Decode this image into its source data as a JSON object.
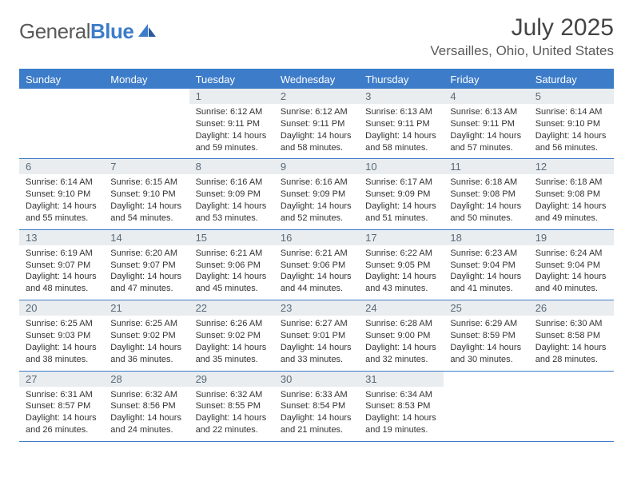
{
  "brand": {
    "part1": "General",
    "part2": "Blue"
  },
  "title": "July 2025",
  "location": "Versailles, Ohio, United States",
  "colors": {
    "accent": "#3d7cc9",
    "daynum_bg": "#e9edf0",
    "text": "#333333",
    "muted": "#5a5a5a"
  },
  "weekdays": [
    "Sunday",
    "Monday",
    "Tuesday",
    "Wednesday",
    "Thursday",
    "Friday",
    "Saturday"
  ],
  "layout": {
    "first_weekday_index": 2,
    "days_in_month": 31
  },
  "days": {
    "1": {
      "sunrise": "6:12 AM",
      "sunset": "9:11 PM",
      "daylight": "14 hours and 59 minutes."
    },
    "2": {
      "sunrise": "6:12 AM",
      "sunset": "9:11 PM",
      "daylight": "14 hours and 58 minutes."
    },
    "3": {
      "sunrise": "6:13 AM",
      "sunset": "9:11 PM",
      "daylight": "14 hours and 58 minutes."
    },
    "4": {
      "sunrise": "6:13 AM",
      "sunset": "9:11 PM",
      "daylight": "14 hours and 57 minutes."
    },
    "5": {
      "sunrise": "6:14 AM",
      "sunset": "9:10 PM",
      "daylight": "14 hours and 56 minutes."
    },
    "6": {
      "sunrise": "6:14 AM",
      "sunset": "9:10 PM",
      "daylight": "14 hours and 55 minutes."
    },
    "7": {
      "sunrise": "6:15 AM",
      "sunset": "9:10 PM",
      "daylight": "14 hours and 54 minutes."
    },
    "8": {
      "sunrise": "6:16 AM",
      "sunset": "9:09 PM",
      "daylight": "14 hours and 53 minutes."
    },
    "9": {
      "sunrise": "6:16 AM",
      "sunset": "9:09 PM",
      "daylight": "14 hours and 52 minutes."
    },
    "10": {
      "sunrise": "6:17 AM",
      "sunset": "9:09 PM",
      "daylight": "14 hours and 51 minutes."
    },
    "11": {
      "sunrise": "6:18 AM",
      "sunset": "9:08 PM",
      "daylight": "14 hours and 50 minutes."
    },
    "12": {
      "sunrise": "6:18 AM",
      "sunset": "9:08 PM",
      "daylight": "14 hours and 49 minutes."
    },
    "13": {
      "sunrise": "6:19 AM",
      "sunset": "9:07 PM",
      "daylight": "14 hours and 48 minutes."
    },
    "14": {
      "sunrise": "6:20 AM",
      "sunset": "9:07 PM",
      "daylight": "14 hours and 47 minutes."
    },
    "15": {
      "sunrise": "6:21 AM",
      "sunset": "9:06 PM",
      "daylight": "14 hours and 45 minutes."
    },
    "16": {
      "sunrise": "6:21 AM",
      "sunset": "9:06 PM",
      "daylight": "14 hours and 44 minutes."
    },
    "17": {
      "sunrise": "6:22 AM",
      "sunset": "9:05 PM",
      "daylight": "14 hours and 43 minutes."
    },
    "18": {
      "sunrise": "6:23 AM",
      "sunset": "9:04 PM",
      "daylight": "14 hours and 41 minutes."
    },
    "19": {
      "sunrise": "6:24 AM",
      "sunset": "9:04 PM",
      "daylight": "14 hours and 40 minutes."
    },
    "20": {
      "sunrise": "6:25 AM",
      "sunset": "9:03 PM",
      "daylight": "14 hours and 38 minutes."
    },
    "21": {
      "sunrise": "6:25 AM",
      "sunset": "9:02 PM",
      "daylight": "14 hours and 36 minutes."
    },
    "22": {
      "sunrise": "6:26 AM",
      "sunset": "9:02 PM",
      "daylight": "14 hours and 35 minutes."
    },
    "23": {
      "sunrise": "6:27 AM",
      "sunset": "9:01 PM",
      "daylight": "14 hours and 33 minutes."
    },
    "24": {
      "sunrise": "6:28 AM",
      "sunset": "9:00 PM",
      "daylight": "14 hours and 32 minutes."
    },
    "25": {
      "sunrise": "6:29 AM",
      "sunset": "8:59 PM",
      "daylight": "14 hours and 30 minutes."
    },
    "26": {
      "sunrise": "6:30 AM",
      "sunset": "8:58 PM",
      "daylight": "14 hours and 28 minutes."
    },
    "27": {
      "sunrise": "6:31 AM",
      "sunset": "8:57 PM",
      "daylight": "14 hours and 26 minutes."
    },
    "28": {
      "sunrise": "6:32 AM",
      "sunset": "8:56 PM",
      "daylight": "14 hours and 24 minutes."
    },
    "29": {
      "sunrise": "6:32 AM",
      "sunset": "8:55 PM",
      "daylight": "14 hours and 22 minutes."
    },
    "30": {
      "sunrise": "6:33 AM",
      "sunset": "8:54 PM",
      "daylight": "14 hours and 21 minutes."
    },
    "31": {
      "sunrise": "6:34 AM",
      "sunset": "8:53 PM",
      "daylight": "14 hours and 19 minutes."
    }
  },
  "labels": {
    "sunrise_prefix": "Sunrise: ",
    "sunset_prefix": "Sunset: ",
    "daylight_prefix": "Daylight: "
  }
}
